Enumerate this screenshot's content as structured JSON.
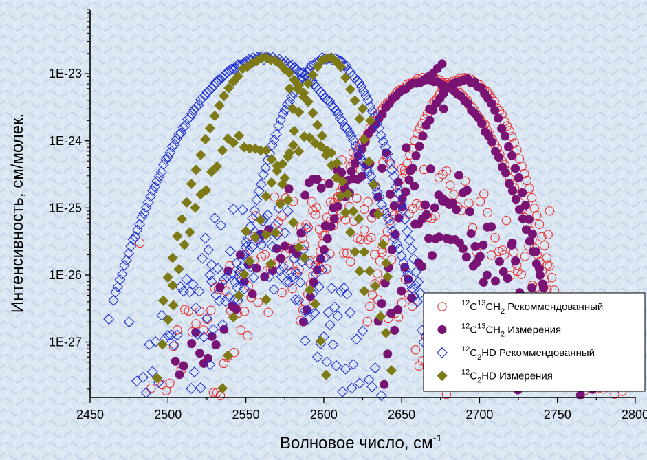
{
  "chart_data": {
    "type": "scatter",
    "xlabel": {
      "text": "Волновое число, см",
      "sup": "-1"
    },
    "ylabel": "Интенсивность, см/молек.",
    "x_scale": "linear",
    "y_scale": "log",
    "xlim": [
      2450,
      2800
    ],
    "ylim": [
      1.5e-28,
      9e-23
    ],
    "x_ticks": [
      2450,
      2500,
      2550,
      2600,
      2650,
      2700,
      2750,
      2800
    ],
    "x_tick_labels": [
      "2450",
      "2500",
      "2550",
      "2600",
      "2650",
      "2700",
      "2750",
      "2800"
    ],
    "y_ticks": [
      1e-27,
      1e-26,
      1e-25,
      1e-24,
      1e-23
    ],
    "y_tick_labels": [
      "1E-27",
      "1E-26",
      "1E-25",
      "1E-24",
      "1E-23"
    ],
    "grid": false,
    "legend_position": "bottom-right",
    "colors": {
      "c13_recommended": "#e8312f",
      "c13_measured": "#7a1474",
      "c2hd_recommended": "#1f2fd0",
      "c2hd_measured": "#7d7a17"
    },
    "series": [
      {
        "name": "12C13CH2 Рекоммендованный",
        "legend_parts": [
          "12",
          "C",
          "13",
          "CH",
          "2",
          " Рекоммендованный"
        ],
        "marker": "open-circle",
        "bands": [
          {
            "center": 2667,
            "peak": 9e-24,
            "halfwidth": 82,
            "step": 1.6,
            "kind": "dense"
          },
          {
            "center": 2690,
            "peak": 9e-24,
            "halfwidth": 62,
            "step": 1.6,
            "kind": "dense"
          },
          {
            "center": 2637,
            "peak": 8e-25,
            "halfwidth": 155,
            "step": 2.4,
            "kind": "scatter"
          },
          {
            "center": 2600,
            "peak": 1.1e-25,
            "halfwidth": 95,
            "step": 2.2,
            "kind": "scatter"
          }
        ],
        "points": [
          [
            2482,
            3e-26
          ],
          [
            2745,
            9e-26
          ],
          [
            2744,
            4e-26
          ],
          [
            2724,
            1.4e-26
          ],
          [
            2716,
            2e-26
          ]
        ]
      },
      {
        "name": "12C13CH2 Измерения",
        "legend_parts": [
          "12",
          "C",
          "13",
          "CH",
          "2",
          " Измерения"
        ],
        "marker": "filled-circle",
        "bands": [
          {
            "center": 2667,
            "peak": 8.5e-24,
            "halfwidth": 80,
            "step": 2.2,
            "kind": "dense"
          },
          {
            "center": 2690,
            "peak": 8.5e-24,
            "halfwidth": 55,
            "step": 2.2,
            "kind": "dense"
          },
          {
            "center": 2637,
            "peak": 9e-25,
            "halfwidth": 140,
            "step": 2.6,
            "kind": "scatter"
          },
          {
            "center": 2680,
            "peak": 3e-25,
            "halfwidth": 50,
            "step": 2.2,
            "kind": "scatter"
          }
        ],
        "points": [
          [
            2676,
            1.4e-23
          ],
          [
            2673,
            1.2e-23
          ],
          [
            2670,
            1e-23
          ],
          [
            2667,
            9e-24
          ],
          [
            2664,
            8e-24
          ],
          [
            2677,
            6e-24
          ],
          [
            2677,
            3e-24
          ],
          [
            2668,
            3e-24
          ],
          [
            2721,
            3e-26
          ],
          [
            2723,
            1.6e-26
          ]
        ]
      },
      {
        "name": "12C2HD Рекоммендованный",
        "legend_parts": [
          "12",
          "C",
          "2",
          "HD",
          "",
          " Рекоммендованный"
        ],
        "marker": "open-diamond",
        "bands": [
          {
            "center": 2562,
            "peak": 1.8e-23,
            "halfwidth": 97,
            "step": 1.4,
            "kind": "dense"
          },
          {
            "center": 2603,
            "peak": 1.8e-23,
            "halfwidth": 60,
            "step": 1.4,
            "kind": "dense"
          },
          {
            "center": 2548,
            "peak": 1.2e-25,
            "halfwidth": 80,
            "step": 2.0,
            "kind": "scatter"
          },
          {
            "center": 2572,
            "peak": 1e-25,
            "halfwidth": 75,
            "step": 2.0,
            "kind": "scatter"
          }
        ],
        "points": [
          [
            2462,
            2.2e-27
          ],
          [
            2475,
            2e-27
          ],
          [
            2588,
            1.05e-27
          ],
          [
            2664,
            1e-27
          ],
          [
            2663,
            1.5e-27
          ],
          [
            2659,
            7e-27
          ],
          [
            2660,
            4e-27
          ],
          [
            2527,
            1e-26
          ],
          [
            2528,
            8e-27
          ],
          [
            2546,
            1.1e-26
          ]
        ]
      },
      {
        "name": "12C2HD Измерения",
        "legend_parts": [
          "12",
          "C",
          "2",
          "HD",
          "",
          " Измерения"
        ],
        "marker": "filled-diamond",
        "bands": [
          {
            "center": 2562,
            "peak": 1.8e-23,
            "halfwidth": 65,
            "step": 3.0,
            "kind": "dense"
          },
          {
            "center": 2603,
            "peak": 1.8e-23,
            "halfwidth": 40,
            "step": 3.0,
            "kind": "dense"
          },
          {
            "center": 2548,
            "peak": 1.4e-24,
            "halfwidth": 55,
            "step": 3.5,
            "kind": "sparse"
          },
          {
            "center": 2590,
            "peak": 1.3e-24,
            "halfwidth": 55,
            "step": 3.5,
            "kind": "sparse"
          }
        ],
        "points": [
          [
            2578,
            6e-24
          ],
          [
            2583,
            6e-24
          ],
          [
            2580,
            3e-24
          ],
          [
            2503,
            7e-27
          ],
          [
            2563,
            4e-26
          ],
          [
            2550,
            4.5e-26
          ],
          [
            2640,
            1.5e-26
          ],
          [
            2625,
            3e-24
          ],
          [
            2630,
            2e-24
          ]
        ]
      }
    ]
  }
}
